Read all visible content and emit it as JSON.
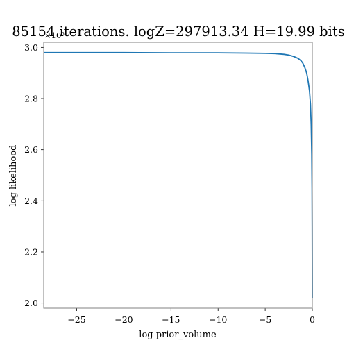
{
  "chart_data": {
    "type": "line",
    "title": "85154 iterations. logZ=297913.34 H=19.99 bits",
    "xlabel": "log prior_volume",
    "ylabel": "log likelihood",
    "y_offset_label": "×10⁵",
    "xlim": [
      -28.5,
      0
    ],
    "ylim": [
      1.98,
      3.02
    ],
    "x_ticks": [
      -25,
      -20,
      -15,
      -10,
      -5,
      0
    ],
    "x_tick_labels": [
      "−25",
      "−20",
      "−15",
      "−10",
      "−5",
      "0"
    ],
    "y_ticks": [
      2.0,
      2.2,
      2.4,
      2.6,
      2.8,
      3.0
    ],
    "y_tick_labels": [
      "2.0",
      "2.2",
      "2.4",
      "2.6",
      "2.8",
      "3.0"
    ],
    "grid": false,
    "line_color": "#1f77b4",
    "series": [
      {
        "x": [
          -28.5,
          -25,
          -20,
          -15,
          -10,
          -7,
          -5,
          -4,
          -3,
          -2.5,
          -2,
          -1.5,
          -1.2,
          -1.0,
          -0.8,
          -0.6,
          -0.45,
          -0.3,
          -0.2,
          -0.12,
          -0.06,
          -0.03,
          -0.015,
          -0.006,
          0
        ],
        "values": [
          2.98,
          2.98,
          2.98,
          2.979,
          2.979,
          2.978,
          2.977,
          2.976,
          2.973,
          2.97,
          2.965,
          2.957,
          2.948,
          2.938,
          2.922,
          2.9,
          2.87,
          2.83,
          2.78,
          2.7,
          2.58,
          2.45,
          2.3,
          2.15,
          2.02
        ]
      }
    ]
  }
}
